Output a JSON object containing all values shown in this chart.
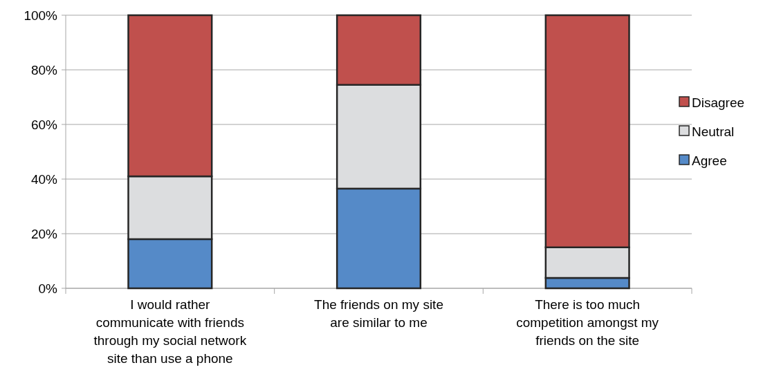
{
  "chart_data": {
    "type": "bar",
    "stacked": true,
    "categories": [
      "I would rather communicate with friends through my social network site than use a phone",
      "The friends on my site are similar to me",
      "There is too much competition amongst my friends on the site"
    ],
    "series": [
      {
        "name": "Agree",
        "color": "#558ac8",
        "values": [
          18,
          36.5,
          3.8
        ]
      },
      {
        "name": "Neutral",
        "color": "#dcdddf",
        "values": [
          23,
          38,
          11.2
        ]
      },
      {
        "name": "Disagree",
        "color": "#c0504d",
        "values": [
          59,
          25.5,
          85
        ]
      }
    ],
    "ylim": [
      0,
      100
    ],
    "yticks": [
      {
        "value": 0,
        "label": "0%"
      },
      {
        "value": 20,
        "label": "20%"
      },
      {
        "value": 40,
        "label": "40%"
      },
      {
        "value": 60,
        "label": "60%"
      },
      {
        "value": 80,
        "label": "80%"
      },
      {
        "value": 100,
        "label": "100%"
      }
    ],
    "grid": "y",
    "legend": "right"
  }
}
